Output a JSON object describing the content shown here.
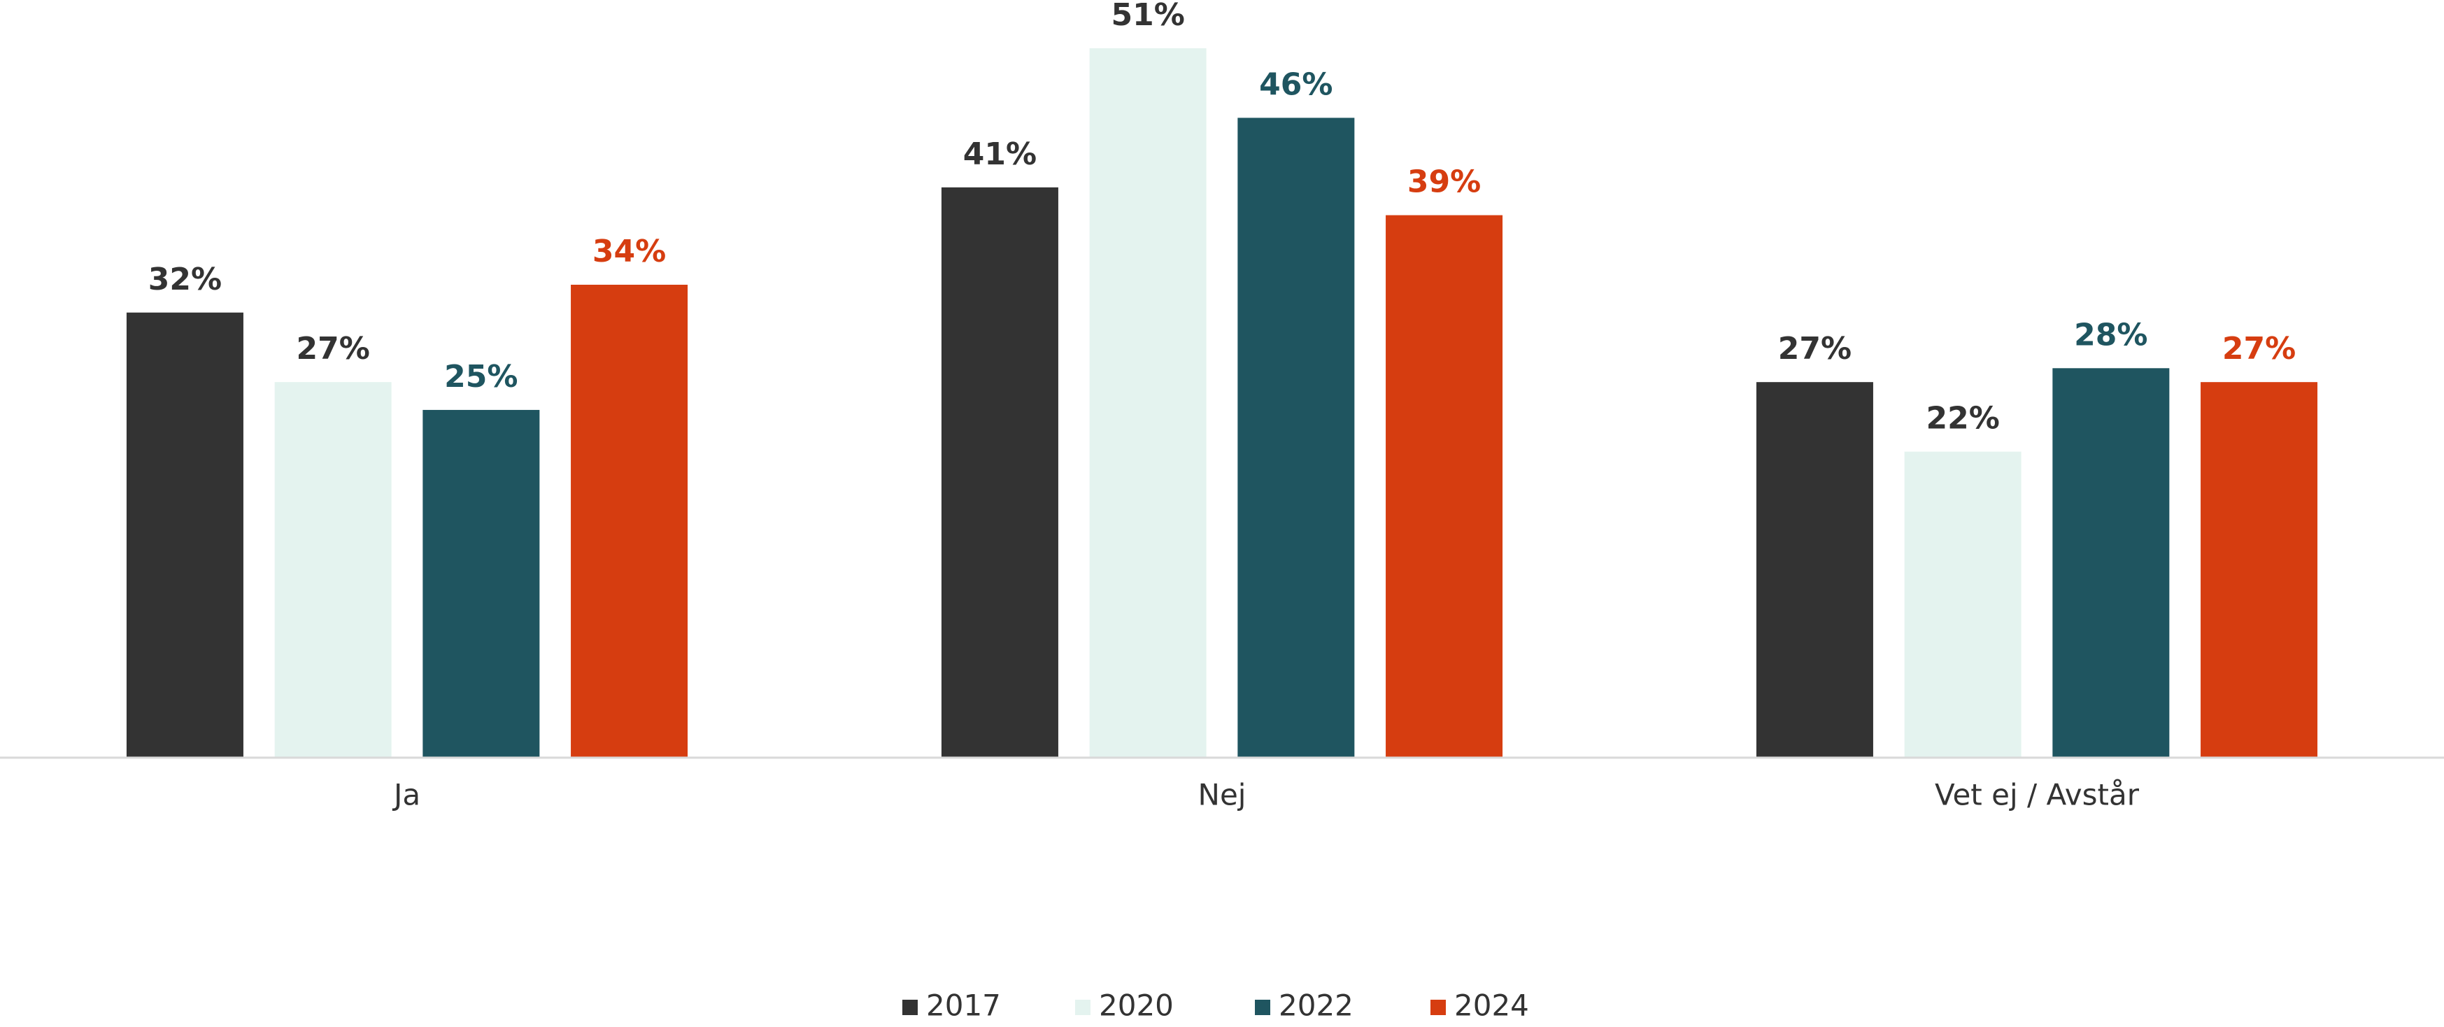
{
  "chart_data": {
    "type": "bar",
    "categories": [
      "Ja",
      "Nej",
      "Vet ej / Avstår"
    ],
    "series": [
      {
        "name": "2017",
        "color": "#333333",
        "values": [
          32,
          41,
          27
        ],
        "value_labels": [
          "32%",
          "41%",
          "27%"
        ]
      },
      {
        "name": "2020",
        "color": "#e4f3ef",
        "values": [
          27,
          51,
          22
        ],
        "value_labels": [
          "27%",
          "51%",
          "22%"
        ]
      },
      {
        "name": "2022",
        "color": "#1f5560",
        "values": [
          25,
          46,
          28
        ],
        "value_labels": [
          "25%",
          "46%",
          "28%"
        ]
      },
      {
        "name": "2024",
        "color": "#d63d10",
        "values": [
          34,
          39,
          27
        ],
        "value_labels": [
          "34%",
          "39%",
          "27%"
        ]
      }
    ],
    "legend": "bottom"
  }
}
